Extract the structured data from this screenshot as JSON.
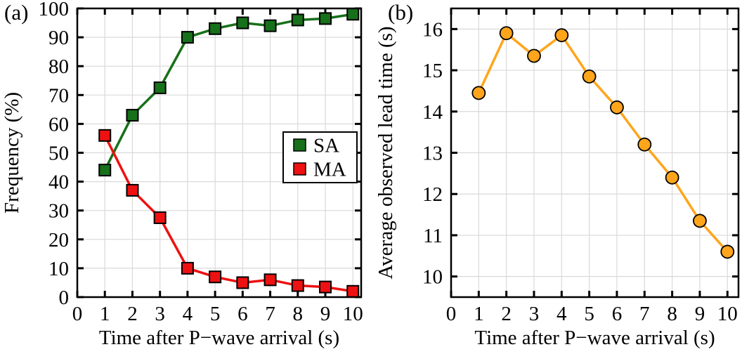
{
  "figure": {
    "background": "#ffffff",
    "text_color": "#000000",
    "grid_color": "#d9d9d9",
    "axis_color": "#000000"
  },
  "chart_data": [
    {
      "id": "frequency-chart",
      "type": "line",
      "panel_label": "(a)",
      "xlabel": "Time after P−wave arrival (s)",
      "ylabel": "Frequency (%)",
      "x": [
        1,
        2,
        3,
        4,
        5,
        6,
        7,
        8,
        9,
        10
      ],
      "series": [
        {
          "name": "SA",
          "color": "#17701a",
          "marker": "square",
          "values": [
            44,
            63,
            72.5,
            90,
            93,
            95,
            94,
            96,
            96.5,
            98
          ]
        },
        {
          "name": "MA",
          "color": "#ee1111",
          "marker": "square",
          "values": [
            56,
            37,
            27.5,
            10,
            7,
            5,
            6,
            4,
            3.5,
            2
          ]
        }
      ],
      "xlim": [
        0,
        10.3
      ],
      "ylim": [
        0,
        100
      ],
      "xticks": [
        0,
        1,
        2,
        3,
        4,
        5,
        6,
        7,
        8,
        9,
        10
      ],
      "yticks": [
        0,
        10,
        20,
        30,
        40,
        50,
        60,
        70,
        80,
        90,
        100
      ],
      "grid": true,
      "legend": {
        "visible": true,
        "position": "right-center",
        "entries": [
          "SA",
          "MA"
        ]
      }
    },
    {
      "id": "lead-time-chart",
      "type": "line",
      "panel_label": "(b)",
      "xlabel": "Time after P−wave arrival (s)",
      "ylabel": "Average observed lead time (s)",
      "x": [
        1,
        2,
        3,
        4,
        5,
        6,
        7,
        8,
        9,
        10
      ],
      "series": [
        {
          "name": "Average observed lead time",
          "color": "#ffa51c",
          "marker": "circle",
          "values": [
            14.45,
            15.9,
            15.35,
            15.85,
            14.85,
            14.1,
            13.2,
            12.4,
            11.35,
            10.6
          ]
        }
      ],
      "xlim": [
        0,
        10.4
      ],
      "ylim": [
        9.5,
        16.5
      ],
      "xticks": [
        0,
        1,
        2,
        3,
        4,
        5,
        6,
        7,
        8,
        9,
        10
      ],
      "yticks": [
        10,
        11,
        12,
        13,
        14,
        15,
        16
      ],
      "grid": true,
      "legend": {
        "visible": false
      }
    }
  ]
}
